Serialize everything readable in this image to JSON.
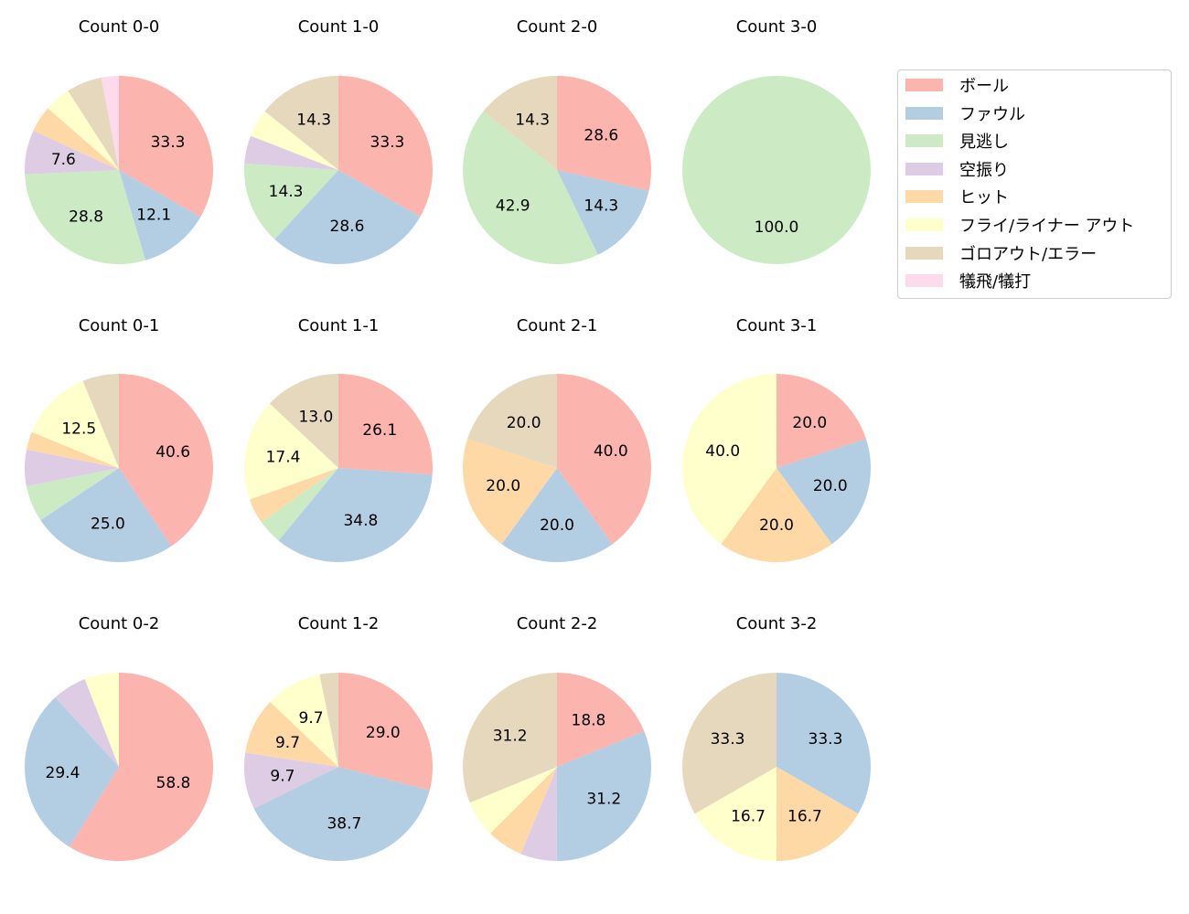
{
  "chart_data": [
    {
      "type": "pie",
      "title": "Count 0-0",
      "values": [
        33.3,
        12.1,
        28.8,
        7.6,
        4.5,
        4.5,
        6.1,
        3.0
      ]
    },
    {
      "type": "pie",
      "title": "Count 1-0",
      "values": [
        33.3,
        28.6,
        14.3,
        4.8,
        0,
        4.8,
        14.3,
        0
      ]
    },
    {
      "type": "pie",
      "title": "Count 2-0",
      "values": [
        28.6,
        14.3,
        42.9,
        0,
        0,
        0,
        14.3,
        0
      ]
    },
    {
      "type": "pie",
      "title": "Count 3-0",
      "values": [
        0,
        0,
        100.0,
        0,
        0,
        0,
        0,
        0
      ]
    },
    {
      "type": "pie",
      "title": "Count 0-1",
      "values": [
        40.6,
        25.0,
        6.25,
        6.25,
        3.1,
        12.5,
        6.25,
        0
      ]
    },
    {
      "type": "pie",
      "title": "Count 1-1",
      "values": [
        26.1,
        34.8,
        4.3,
        0,
        4.3,
        17.4,
        13.0,
        0
      ]
    },
    {
      "type": "pie",
      "title": "Count 2-1",
      "values": [
        40.0,
        20.0,
        0,
        0,
        20.0,
        0,
        20.0,
        0
      ]
    },
    {
      "type": "pie",
      "title": "Count 3-1",
      "values": [
        20.0,
        20.0,
        0,
        0,
        20.0,
        40.0,
        0,
        0
      ]
    },
    {
      "type": "pie",
      "title": "Count 0-2",
      "values": [
        58.8,
        29.4,
        0,
        5.9,
        0,
        5.9,
        0,
        0
      ]
    },
    {
      "type": "pie",
      "title": "Count 1-2",
      "values": [
        29.0,
        38.7,
        0,
        9.7,
        9.7,
        9.7,
        3.2,
        0
      ]
    },
    {
      "type": "pie",
      "title": "Count 2-2",
      "values": [
        18.8,
        31.2,
        0,
        6.25,
        6.25,
        6.25,
        31.2,
        0
      ]
    },
    {
      "type": "pie",
      "title": "Count 3-2",
      "values": [
        0,
        33.3,
        0,
        0,
        16.7,
        16.7,
        33.3,
        0
      ]
    }
  ],
  "legend": {
    "placement": "right",
    "entries": [
      "ボール",
      "ファウル",
      "見逃し",
      "空振り",
      "ヒット",
      "フライ/ライナー アウト",
      "ゴロアウト/エラー",
      "犠飛/犠打"
    ],
    "colors": [
      "#fbb4ae",
      "#b3cde3",
      "#ccebc5",
      "#decbe4",
      "#fed9a6",
      "#ffffcc",
      "#e5d8bd",
      "#fddaec"
    ]
  }
}
